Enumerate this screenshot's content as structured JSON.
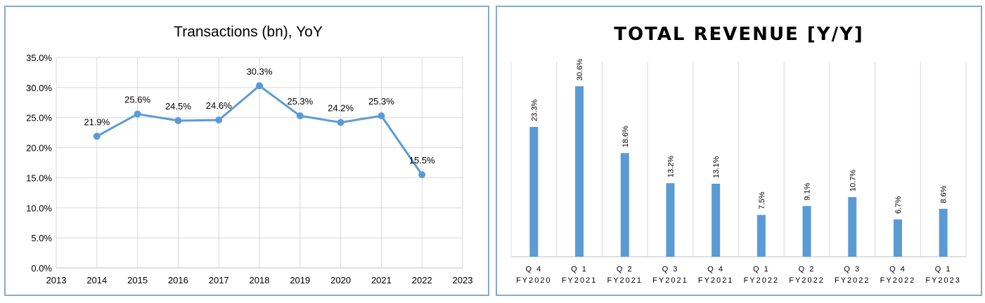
{
  "chart_data": [
    {
      "type": "line",
      "title": "Transactions (bn), YoY",
      "x": [
        2014,
        2015,
        2016,
        2017,
        2018,
        2019,
        2020,
        2021,
        2022
      ],
      "values": [
        21.9,
        25.6,
        24.5,
        24.6,
        30.3,
        25.3,
        24.2,
        25.3,
        15.5
      ],
      "data_labels": [
        "21.9%",
        "25.6%",
        "24.5%",
        "24.6%",
        "30.3%",
        "25.3%",
        "24.2%",
        "25.3%",
        "15.5%"
      ],
      "x_ticks": [
        "2013",
        "2014",
        "2015",
        "2016",
        "2017",
        "2018",
        "2019",
        "2020",
        "2021",
        "2022",
        "2023"
      ],
      "xlim": [
        2013,
        2023
      ],
      "y_ticks": [
        "0.0%",
        "5.0%",
        "10.0%",
        "15.0%",
        "20.0%",
        "25.0%",
        "30.0%",
        "35.0%"
      ],
      "ylim": [
        0,
        35
      ],
      "grid": true,
      "color": "#5b9bd5"
    },
    {
      "type": "bar",
      "title": "TOTAL REVENUE [Y/Y]",
      "categories": [
        [
          "Q 4",
          "FY2020"
        ],
        [
          "Q 1",
          "FY2021"
        ],
        [
          "Q 2",
          "FY2021"
        ],
        [
          "Q 3",
          "FY2021"
        ],
        [
          "Q 4",
          "FY2021"
        ],
        [
          "Q 1",
          "FY2022"
        ],
        [
          "Q 2",
          "FY2022"
        ],
        [
          "Q 3",
          "FY2022"
        ],
        [
          "Q 4",
          "FY2022"
        ],
        [
          "Q 1",
          "FY2023"
        ]
      ],
      "values": [
        23.3,
        30.6,
        18.6,
        13.2,
        13.1,
        7.5,
        9.1,
        10.7,
        6.7,
        8.6
      ],
      "data_labels": [
        "23.3%",
        "30.6%",
        "18.6%",
        "13.2%",
        "13.1%",
        "7.5%",
        "9.1%",
        "10.7%",
        "6.7%",
        "8.6%"
      ],
      "ylim": [
        0,
        35
      ],
      "grid": "vertical",
      "color": "#5b9bd5"
    }
  ]
}
